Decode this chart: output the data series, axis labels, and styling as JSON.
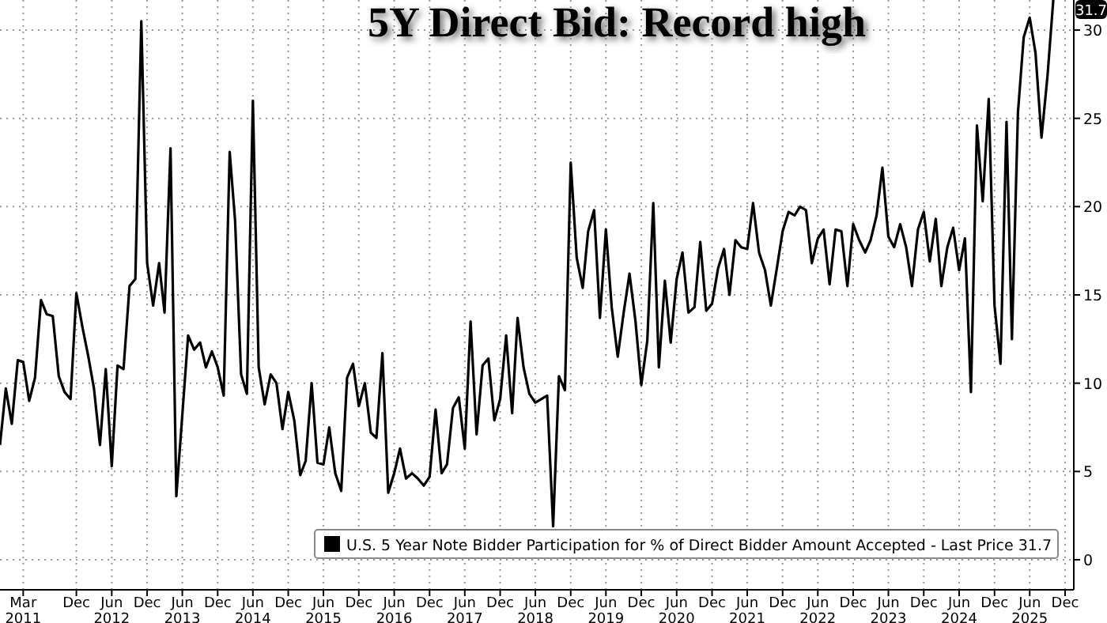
{
  "chart_data": {
    "type": "line",
    "title": "5Y Direct Bid: Record high",
    "x": [
      "2010-11",
      "2010-12",
      "2011-01",
      "2011-02",
      "2011-03",
      "2011-04",
      "2011-05",
      "2011-06",
      "2011-07",
      "2011-08",
      "2011-09",
      "2011-10",
      "2011-11",
      "2011-12",
      "2012-01",
      "2012-02",
      "2012-03",
      "2012-04",
      "2012-05",
      "2012-06",
      "2012-07",
      "2012-08",
      "2012-09",
      "2012-10",
      "2012-11",
      "2012-12",
      "2013-01",
      "2013-02",
      "2013-03",
      "2013-04",
      "2013-05",
      "2013-06",
      "2013-07",
      "2013-08",
      "2013-09",
      "2013-10",
      "2013-11",
      "2013-12",
      "2014-01",
      "2014-02",
      "2014-03",
      "2014-04",
      "2014-05",
      "2014-06",
      "2014-07",
      "2014-08",
      "2014-09",
      "2014-10",
      "2014-11",
      "2014-12",
      "2015-01",
      "2015-02",
      "2015-03",
      "2015-04",
      "2015-05",
      "2015-06",
      "2015-07",
      "2015-08",
      "2015-09",
      "2015-10",
      "2015-11",
      "2015-12",
      "2016-01",
      "2016-02",
      "2016-03",
      "2016-04",
      "2016-05",
      "2016-06",
      "2016-07",
      "2016-08",
      "2016-09",
      "2016-10",
      "2016-11",
      "2016-12",
      "2017-01",
      "2017-02",
      "2017-03",
      "2017-04",
      "2017-05",
      "2017-06",
      "2017-07",
      "2017-08",
      "2017-09",
      "2017-10",
      "2017-11",
      "2017-12",
      "2018-01",
      "2018-02",
      "2018-03",
      "2018-04",
      "2018-05",
      "2018-06",
      "2018-07",
      "2018-08",
      "2018-09",
      "2018-10",
      "2018-11",
      "2018-12",
      "2019-01",
      "2019-02",
      "2019-03",
      "2019-04",
      "2019-05",
      "2019-06",
      "2019-07",
      "2019-08",
      "2019-09",
      "2019-10",
      "2019-11",
      "2019-12",
      "2020-01",
      "2020-02",
      "2020-03",
      "2020-04",
      "2020-05",
      "2020-06",
      "2020-07",
      "2020-08",
      "2020-09",
      "2020-10",
      "2020-11",
      "2020-12",
      "2021-01",
      "2021-02",
      "2021-03",
      "2021-04",
      "2021-05",
      "2021-06",
      "2021-07",
      "2021-08",
      "2021-09",
      "2021-10",
      "2021-11",
      "2021-12",
      "2022-01",
      "2022-02",
      "2022-03",
      "2022-04",
      "2022-05",
      "2022-06",
      "2022-07",
      "2022-08",
      "2022-09",
      "2022-10",
      "2022-11",
      "2022-12",
      "2023-01",
      "2023-02",
      "2023-03",
      "2023-04",
      "2023-05",
      "2023-06",
      "2023-07",
      "2023-08",
      "2023-09",
      "2023-10",
      "2023-11",
      "2023-12",
      "2024-01",
      "2024-02",
      "2024-03",
      "2024-04",
      "2024-05",
      "2024-06",
      "2024-07",
      "2024-08",
      "2024-09",
      "2024-10",
      "2024-11",
      "2024-12",
      "2025-01",
      "2025-02",
      "2025-03",
      "2025-04",
      "2025-05",
      "2025-06",
      "2025-07",
      "2025-08",
      "2025-09",
      "2025-10"
    ],
    "series": [
      {
        "name": "U.S. 5 Year Note Bidder Participation for % of Direct Bidder Amount Accepted - Last Price 31.7",
        "color": "#000000",
        "values": [
          6.5,
          9.7,
          7.7,
          11.3,
          11.2,
          9.0,
          10.3,
          14.7,
          13.9,
          13.8,
          10.4,
          9.5,
          9.1,
          15.1,
          13.2,
          11.5,
          9.7,
          6.5,
          10.8,
          5.3,
          11.0,
          10.8,
          15.5,
          15.9,
          30.5,
          16.8,
          14.4,
          16.8,
          14.0,
          23.3,
          3.6,
          8.2,
          12.7,
          11.9,
          12.3,
          10.9,
          11.8,
          10.9,
          9.3,
          23.1,
          19.2,
          10.5,
          9.4,
          26.0,
          10.9,
          8.8,
          10.5,
          10.0,
          7.4,
          9.5,
          7.9,
          4.8,
          5.6,
          10.0,
          5.5,
          5.4,
          7.5,
          4.9,
          3.9,
          10.3,
          11.1,
          8.7,
          10.0,
          7.2,
          6.9,
          11.7,
          3.8,
          4.9,
          6.3,
          4.6,
          4.9,
          4.6,
          4.2,
          4.7,
          8.5,
          4.9,
          5.4,
          8.6,
          9.2,
          6.3,
          13.5,
          7.1,
          11.0,
          11.4,
          7.9,
          9.1,
          12.7,
          8.3,
          13.7,
          10.9,
          9.4,
          8.9,
          9.1,
          9.3,
          1.9,
          10.4,
          9.6,
          22.5,
          17.1,
          15.4,
          18.6,
          19.8,
          13.7,
          18.7,
          14.3,
          11.5,
          14.0,
          16.2,
          13.5,
          9.9,
          12.4,
          20.2,
          10.9,
          15.8,
          12.3,
          15.9,
          17.4,
          14.0,
          14.3,
          18.0,
          14.1,
          14.5,
          16.5,
          17.6,
          15.0,
          18.1,
          17.7,
          17.6,
          20.2,
          17.4,
          16.4,
          14.4,
          16.5,
          18.6,
          19.7,
          19.5,
          20.0,
          19.8,
          16.8,
          18.2,
          18.7,
          15.6,
          18.7,
          18.6,
          15.5,
          19.0,
          18.1,
          17.4,
          18.1,
          19.5,
          22.2,
          18.3,
          17.7,
          19.0,
          17.7,
          15.5,
          18.7,
          19.7,
          16.9,
          19.3,
          15.5,
          17.7,
          18.8,
          16.4,
          18.2,
          9.5,
          24.6,
          20.3,
          26.1,
          14.4,
          11.1,
          24.8,
          12.5,
          25.3,
          29.6,
          30.7,
          28.7,
          23.9,
          27.4,
          31.7
        ]
      }
    ],
    "xlim": [
      "2010-11-01",
      "2026-01-15"
    ],
    "xticks": [
      {
        "value": "2011-03",
        "label": "Mar\n2011"
      },
      {
        "value": "2011-12",
        "label": "Dec"
      },
      {
        "value": "2012-06",
        "label": "Jun\n2012"
      },
      {
        "value": "2012-12",
        "label": "Dec"
      },
      {
        "value": "2013-06",
        "label": "Jun\n2013"
      },
      {
        "value": "2013-12",
        "label": "Dec"
      },
      {
        "value": "2014-06",
        "label": "Jun\n2014"
      },
      {
        "value": "2014-12",
        "label": "Dec"
      },
      {
        "value": "2015-06",
        "label": "Jun\n2015"
      },
      {
        "value": "2015-12",
        "label": "Dec"
      },
      {
        "value": "2016-06",
        "label": "Jun\n2016"
      },
      {
        "value": "2016-12",
        "label": "Dec"
      },
      {
        "value": "2017-06",
        "label": "Jun\n2017"
      },
      {
        "value": "2017-12",
        "label": "Dec"
      },
      {
        "value": "2018-06",
        "label": "Jun\n2018"
      },
      {
        "value": "2018-12",
        "label": "Dec"
      },
      {
        "value": "2019-06",
        "label": "Jun\n2019"
      },
      {
        "value": "2019-12",
        "label": "Dec"
      },
      {
        "value": "2020-06",
        "label": "Jun\n2020"
      },
      {
        "value": "2020-12",
        "label": "Dec"
      },
      {
        "value": "2021-06",
        "label": "Jun\n2021"
      },
      {
        "value": "2021-12",
        "label": "Dec"
      },
      {
        "value": "2022-06",
        "label": "Jun\n2022"
      },
      {
        "value": "2022-12",
        "label": "Dec"
      },
      {
        "value": "2023-06",
        "label": "Jun\n2023"
      },
      {
        "value": "2023-12",
        "label": "Dec"
      },
      {
        "value": "2024-06",
        "label": "Jun\n2024"
      },
      {
        "value": "2024-12",
        "label": "Dec"
      },
      {
        "value": "2025-06",
        "label": "Jun\n2025"
      },
      {
        "value": "2025-12",
        "label": "Dec"
      }
    ],
    "ylim": [
      -1.7,
      31.7
    ],
    "yticks": [
      0,
      5,
      10,
      15,
      20,
      25,
      30
    ],
    "annotations": [
      "31.7"
    ],
    "grid": true,
    "legend": "bottom right",
    "line_style": "solid"
  }
}
